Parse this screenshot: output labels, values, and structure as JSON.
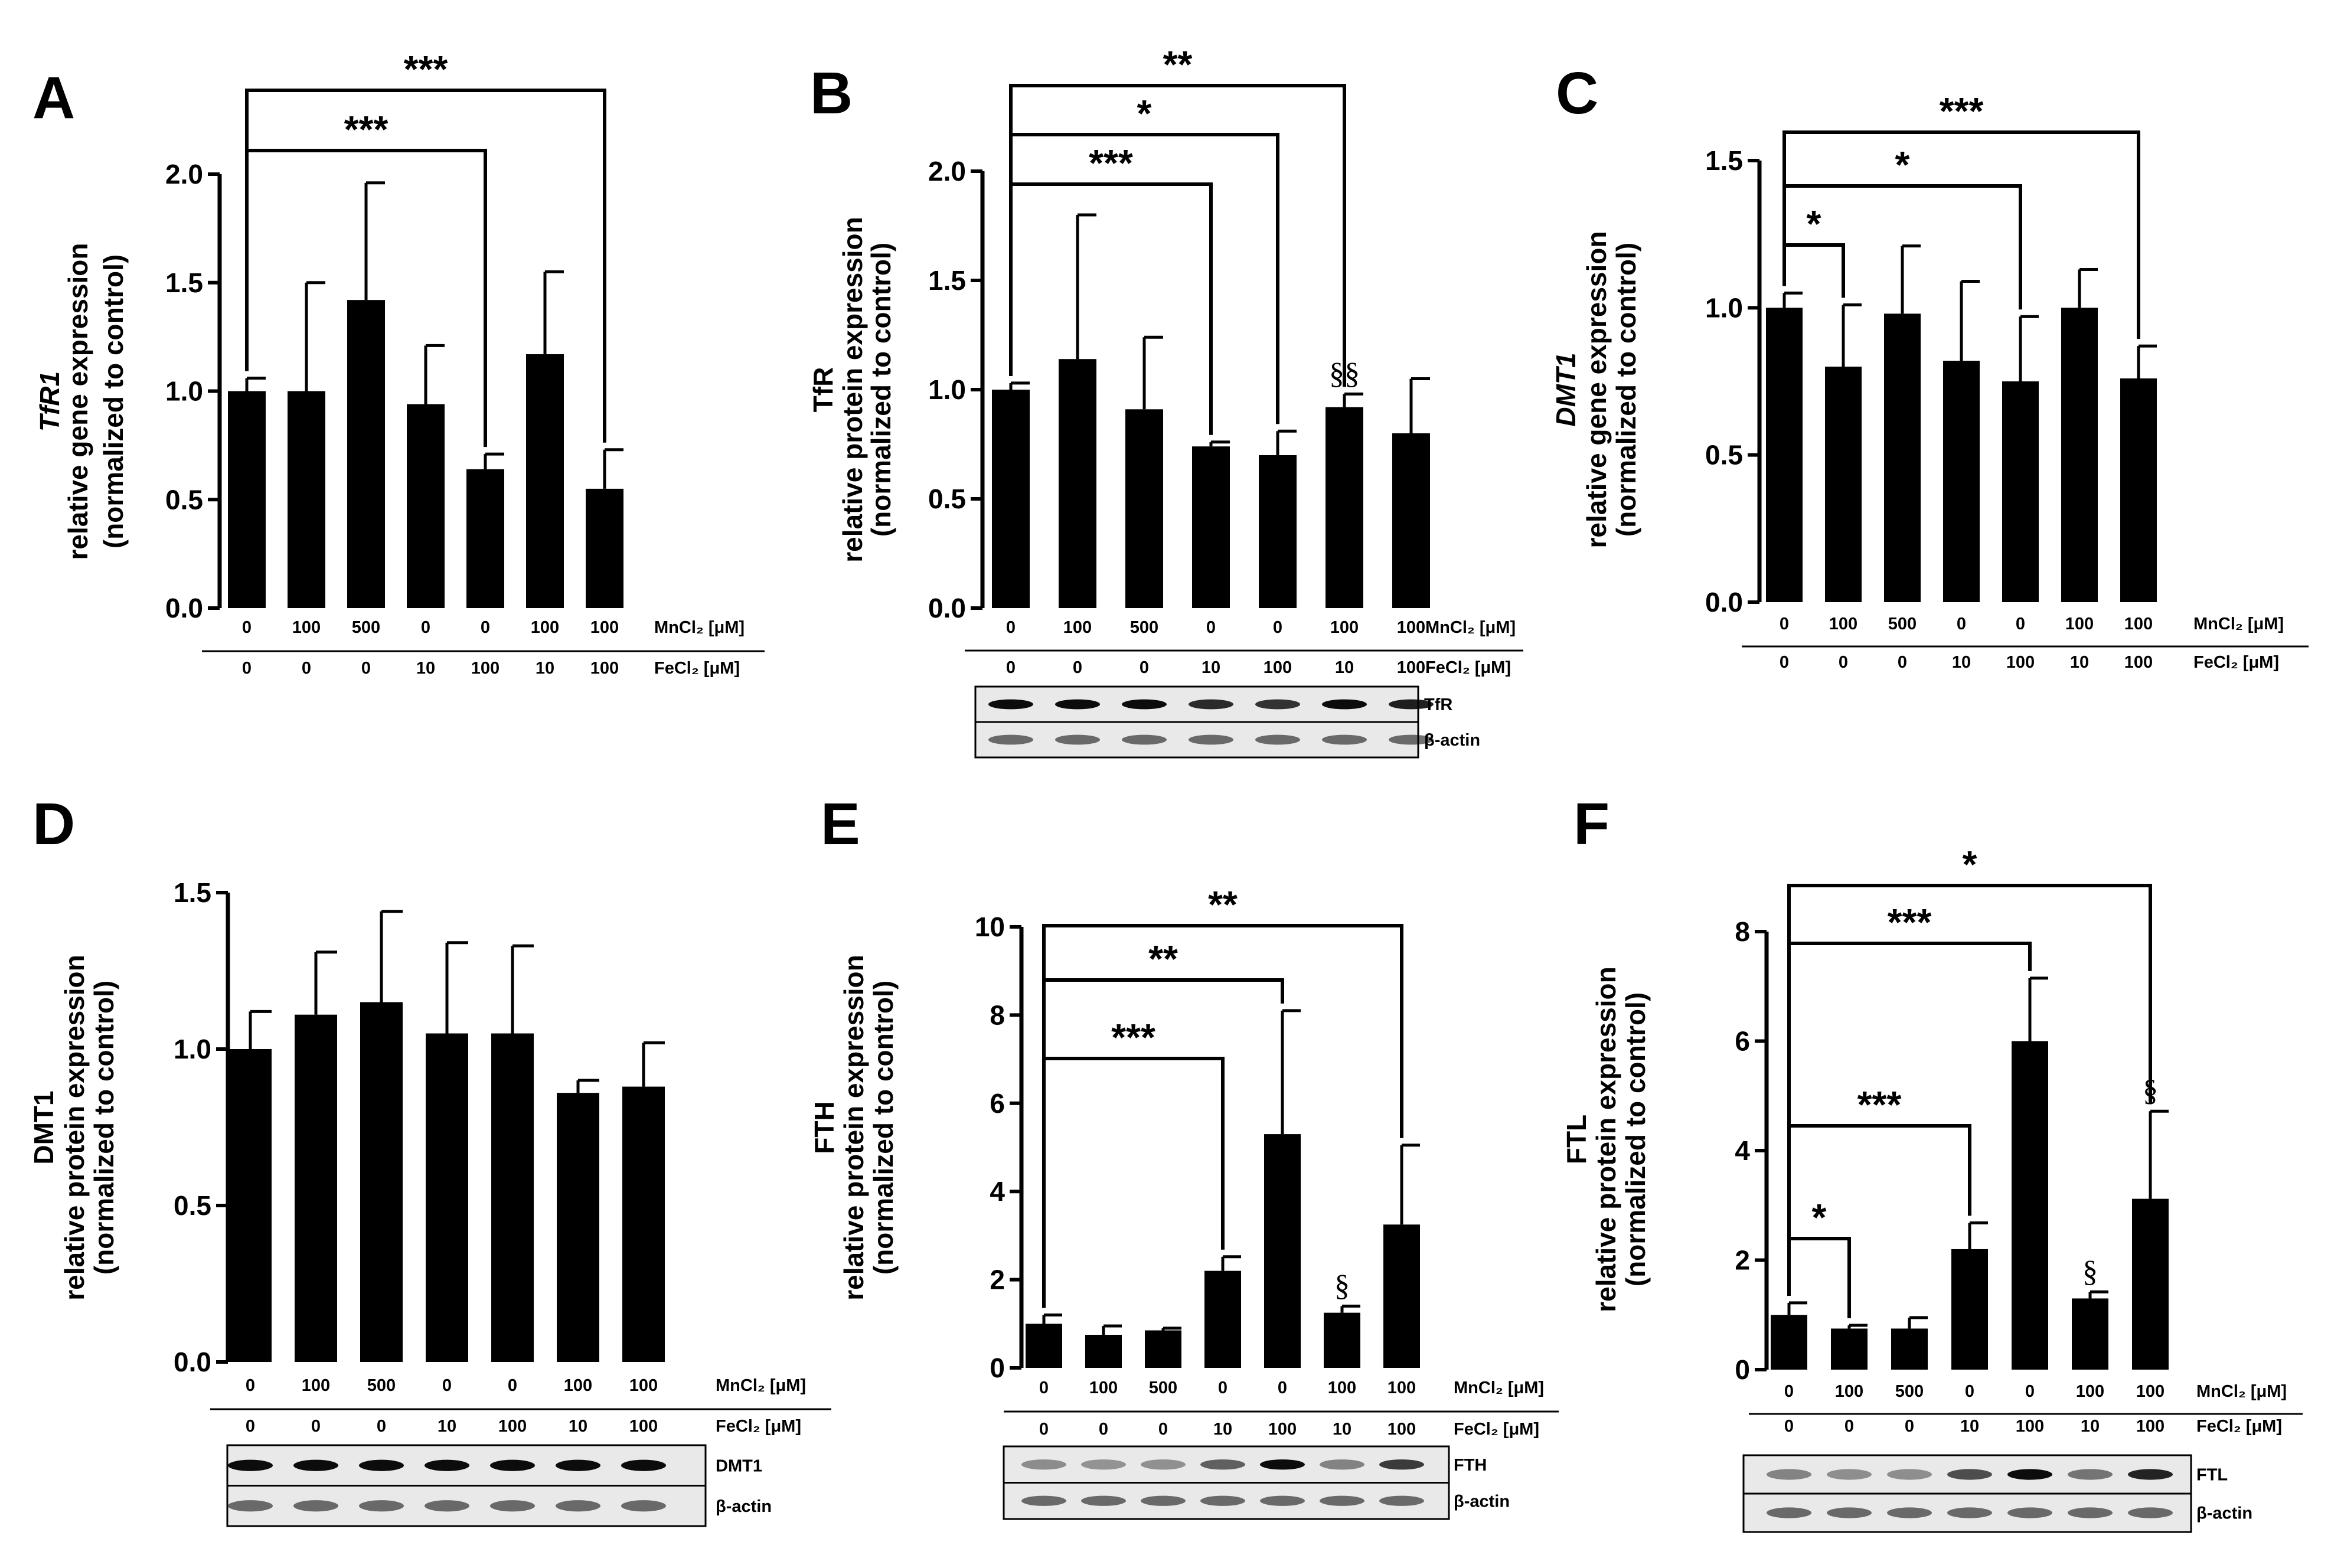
{
  "figure": {
    "mn_label": "MnCl₂ [μM]",
    "fe_label": "FeCl₂ [μM]",
    "mn_values": [
      "0",
      "100",
      "500",
      "0",
      "0",
      "100",
      "100"
    ],
    "fe_values": [
      "0",
      "0",
      "0",
      "10",
      "100",
      "10",
      "100"
    ]
  },
  "chart_data": [
    {
      "panel": "A",
      "type": "bar",
      "ylabel_gene": "TfR1",
      "ylabel_lines": [
        "relative gene expression",
        "(normalized to control)"
      ],
      "ylim": [
        0,
        2.0
      ],
      "yticks": [
        "0.0",
        "0.5",
        "1.0",
        "1.5",
        "2.0"
      ],
      "values": [
        1.0,
        1.0,
        1.42,
        0.94,
        0.64,
        1.17,
        0.55
      ],
      "errors": [
        0.06,
        0.5,
        0.54,
        0.27,
        0.07,
        0.38,
        0.18
      ],
      "brackets": [
        {
          "from": 0,
          "to": 4,
          "label": "***"
        },
        {
          "from": 0,
          "to": 6,
          "label": "***"
        }
      ],
      "markers": [],
      "blot": []
    },
    {
      "panel": "B",
      "type": "bar",
      "ylabel_gene": "",
      "ylabel_lines": [
        "TfR",
        "relative protein expression",
        "(normalized to control)"
      ],
      "ylim": [
        0,
        2.0
      ],
      "yticks": [
        "0.0",
        "0.5",
        "1.0",
        "1.5",
        "2.0"
      ],
      "values": [
        1.0,
        1.14,
        0.91,
        0.74,
        0.7,
        0.92,
        0.8
      ],
      "errors": [
        0.03,
        0.66,
        0.33,
        0.02,
        0.11,
        0.06,
        0.25
      ],
      "brackets": [
        {
          "from": 0,
          "to": 3,
          "label": "***"
        },
        {
          "from": 0,
          "to": 4,
          "label": "*"
        },
        {
          "from": 0,
          "to": 5,
          "label": "**"
        }
      ],
      "markers": [
        {
          "bar": 5,
          "label": "§§"
        }
      ],
      "blot": [
        "TfR",
        "β-actin"
      ]
    },
    {
      "panel": "C",
      "type": "bar",
      "ylabel_gene": "DMT1",
      "ylabel_lines": [
        "relative gene expression",
        "(normalized to control)"
      ],
      "ylim": [
        0,
        1.5
      ],
      "yticks": [
        "0.0",
        "0.5",
        "1.0",
        "1.5"
      ],
      "values": [
        1.0,
        0.8,
        0.98,
        0.82,
        0.75,
        1.0,
        0.76
      ],
      "errors": [
        0.05,
        0.21,
        0.23,
        0.27,
        0.22,
        0.13,
        0.11
      ],
      "brackets": [
        {
          "from": 0,
          "to": 1,
          "label": "*"
        },
        {
          "from": 0,
          "to": 4,
          "label": "*"
        },
        {
          "from": 0,
          "to": 6,
          "label": "***"
        }
      ],
      "markers": [],
      "blot": []
    },
    {
      "panel": "D",
      "type": "bar",
      "ylabel_gene": "",
      "ylabel_lines": [
        "DMT1",
        "relative protein expression",
        "(normalized to control)"
      ],
      "ylim": [
        0,
        1.5
      ],
      "yticks": [
        "0.0",
        "0.5",
        "1.0",
        "1.5"
      ],
      "values": [
        1.0,
        1.11,
        1.15,
        1.05,
        1.05,
        0.86,
        0.88
      ],
      "errors": [
        0.12,
        0.2,
        0.29,
        0.29,
        0.28,
        0.04,
        0.14
      ],
      "brackets": [],
      "markers": [],
      "blot": [
        "DMT1",
        "β-actin"
      ]
    },
    {
      "panel": "E",
      "type": "bar",
      "ylabel_gene": "",
      "ylabel_lines": [
        "FTH",
        "relative protein expression",
        "(normalized to control)"
      ],
      "ylim": [
        0,
        10
      ],
      "yticks": [
        "0",
        "2",
        "4",
        "6",
        "8",
        "10"
      ],
      "values": [
        1.0,
        0.75,
        0.85,
        2.2,
        5.3,
        1.25,
        3.25
      ],
      "errors": [
        0.2,
        0.2,
        0.05,
        0.32,
        2.8,
        0.15,
        1.8
      ],
      "brackets": [
        {
          "from": 0,
          "to": 3,
          "label": "***"
        },
        {
          "from": 0,
          "to": 4,
          "label": "**"
        },
        {
          "from": 0,
          "to": 6,
          "label": "**"
        }
      ],
      "markers": [
        {
          "bar": 5,
          "label": "§"
        }
      ],
      "blot": [
        "FTH",
        "β-actin"
      ]
    },
    {
      "panel": "F",
      "type": "bar",
      "ylabel_gene": "",
      "ylabel_lines": [
        "FTL",
        "relative protein expression",
        "(normalized to control)"
      ],
      "ylim": [
        0,
        8
      ],
      "yticks": [
        "0",
        "2",
        "4",
        "6",
        "8"
      ],
      "values": [
        1.0,
        0.75,
        0.75,
        2.2,
        6.0,
        1.3,
        3.12
      ],
      "errors": [
        0.22,
        0.06,
        0.2,
        0.48,
        1.15,
        0.12,
        1.6
      ],
      "brackets": [
        {
          "from": 0,
          "to": 1,
          "label": "*"
        },
        {
          "from": 0,
          "to": 3,
          "label": "***"
        },
        {
          "from": 0,
          "to": 4,
          "label": "***"
        },
        {
          "from": 0,
          "to": 6,
          "label": "*"
        }
      ],
      "markers": [
        {
          "bar": 5,
          "label": "§"
        },
        {
          "bar": 6,
          "label": "§"
        }
      ],
      "blot": [
        "FTL",
        "β-actin"
      ]
    }
  ]
}
